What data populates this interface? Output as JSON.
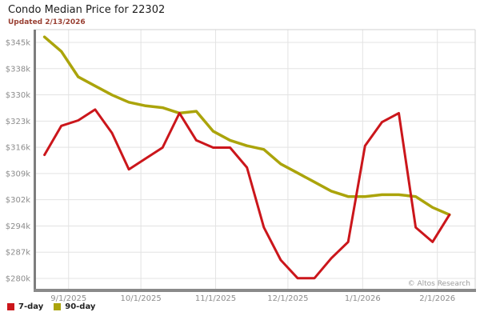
{
  "header": {
    "title": "Condo Median Price for 22302",
    "subtitle": "Updated 2/13/2026"
  },
  "watermark": "© Altos Research",
  "legend": [
    {
      "label": "7-day",
      "color": "#cb161b"
    },
    {
      "label": "90-day",
      "color": "#aba40b"
    }
  ],
  "chart_data": {
    "type": "line",
    "title": "Condo Median Price for 22302",
    "subtitle": "Updated 2/13/2026",
    "units": "USD thousands",
    "grid": true,
    "legend_position": "bottom-left",
    "ylim": [
      276.5,
      348.5
    ],
    "y_ticks": [
      {
        "label": "$345k",
        "value": 345
      },
      {
        "label": "$338k",
        "value": 338
      },
      {
        "label": "$330k",
        "value": 330
      },
      {
        "label": "$323k",
        "value": 323
      },
      {
        "label": "$316k",
        "value": 316
      },
      {
        "label": "$309k",
        "value": 309
      },
      {
        "label": "$302k",
        "value": 302
      },
      {
        "label": "$294k",
        "value": 294
      },
      {
        "label": "$287k",
        "value": 287
      },
      {
        "label": "$280k",
        "value": 280
      }
    ],
    "x_ticks": [
      {
        "label": "9/1/2025",
        "day": 10
      },
      {
        "label": "10/1/2025",
        "day": 40
      },
      {
        "label": "11/1/2025",
        "day": 71
      },
      {
        "label": "12/1/2025",
        "day": 101
      },
      {
        "label": "1/1/2026",
        "day": 132
      },
      {
        "label": "2/1/2026",
        "day": 163
      }
    ],
    "dates": [
      "8/22/2025",
      "8/29/2025",
      "9/5/2025",
      "9/12/2025",
      "9/19/2025",
      "9/26/2025",
      "10/3/2025",
      "10/10/2025",
      "10/17/2025",
      "10/24/2025",
      "10/31/2025",
      "11/7/2025",
      "11/14/2025",
      "11/21/2025",
      "11/28/2025",
      "12/5/2025",
      "12/12/2025",
      "12/19/2025",
      "12/26/2025",
      "1/2/2026",
      "1/9/2026",
      "1/16/2026",
      "1/23/2026",
      "1/30/2026",
      "2/6/2026"
    ],
    "series": [
      {
        "name": "7-day",
        "color": "#cb161b",
        "values": [
          314,
          322,
          323.5,
          326.5,
          320,
          310,
          313,
          316,
          325.5,
          318,
          316,
          316,
          310.5,
          294,
          285,
          280,
          280,
          285.5,
          290,
          316.5,
          323,
          325.5,
          294,
          290,
          297.5
        ]
      },
      {
        "name": "90-day",
        "color": "#aba40b",
        "values": [
          346.5,
          342.5,
          335.5,
          333,
          330.5,
          328.5,
          327.5,
          327,
          325.5,
          326,
          320.5,
          318,
          316.5,
          315.5,
          311.5,
          309,
          306.5,
          304,
          302.5,
          302.5,
          303,
          303,
          302.5,
          299.5,
          297.5
        ]
      }
    ]
  }
}
